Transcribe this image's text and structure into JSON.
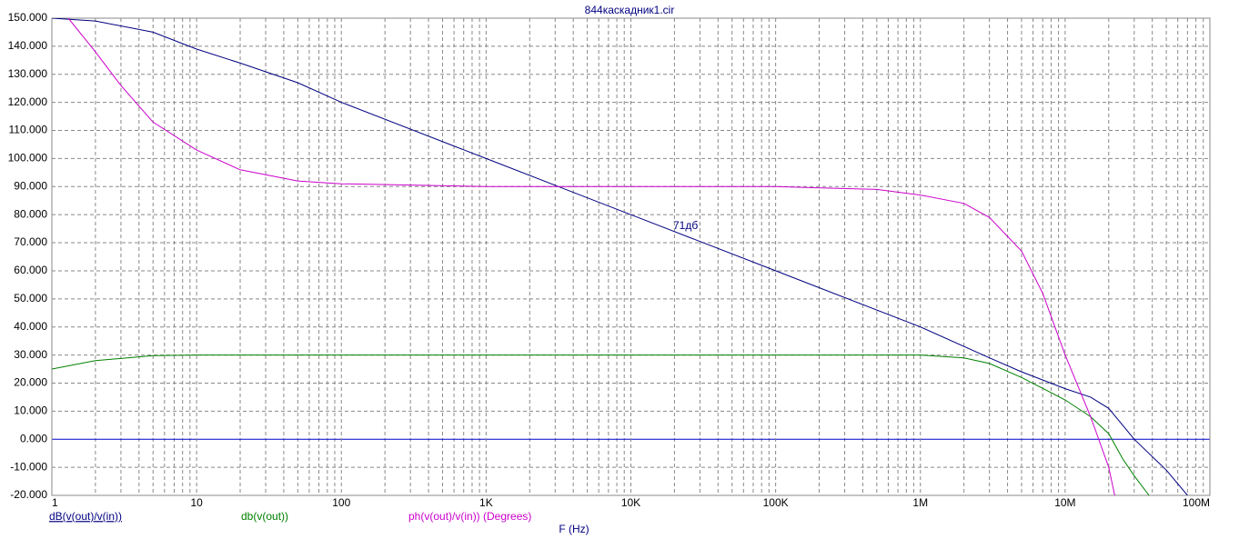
{
  "chart_data": {
    "type": "line",
    "title": "844каскадник1.cir",
    "x_label": "F (Hz)",
    "annotation": "71дб",
    "x_scale": "log",
    "grid": true,
    "xlim": [
      1,
      100000000
    ],
    "xticks": [
      1,
      10,
      100,
      {
        "value": 1000,
        "label": "1K"
      },
      {
        "value": 10000,
        "label": "10K"
      },
      {
        "value": 100000,
        "label": "100K"
      },
      {
        "value": 1000000,
        "label": "1M"
      },
      {
        "value": 10000000,
        "label": "10M"
      },
      {
        "value": 100000000,
        "label": "100M"
      }
    ],
    "ylim": [
      -20,
      150
    ],
    "yticks": [
      {
        "value": 150,
        "label": "150.000"
      },
      {
        "value": 140,
        "label": "140.000"
      },
      {
        "value": 130,
        "label": "130.000"
      },
      {
        "value": 120,
        "label": "120.000"
      },
      {
        "value": 110,
        "label": "110.000"
      },
      {
        "value": 100,
        "label": "100.000"
      },
      {
        "value": 90,
        "label": "90.000"
      },
      {
        "value": 80,
        "label": "80.000"
      },
      {
        "value": 70,
        "label": "70.000"
      },
      {
        "value": 60,
        "label": "60.000"
      },
      {
        "value": 50,
        "label": "50.000"
      },
      {
        "value": 40,
        "label": "40.000"
      },
      {
        "value": 30,
        "label": "30.000"
      },
      {
        "value": 20,
        "label": "20.000"
      },
      {
        "value": 10,
        "label": "10.000"
      },
      {
        "value": 0,
        "label": "0.000"
      },
      {
        "value": -10,
        "label": "-10.000"
      },
      {
        "value": -20,
        "label": "-20.000"
      }
    ],
    "series": [
      {
        "name": "dB(v(out)/v(in))",
        "color": "#000080",
        "x": [
          1,
          2,
          5,
          10,
          20,
          50,
          100,
          1000,
          10000,
          100000,
          1000000,
          3000000,
          5000000,
          10000000,
          15000000,
          20000000,
          30000000,
          50000000,
          70000000
        ],
        "values": [
          150,
          149,
          145,
          139,
          134,
          127,
          120,
          100,
          80,
          60,
          40,
          29,
          24,
          18,
          15,
          11,
          0,
          -11,
          -20
        ]
      },
      {
        "name": "db(v(out))",
        "color": "#008000",
        "x": [
          1,
          2,
          5,
          10,
          1000000,
          2000000,
          3000000,
          5000000,
          10000000,
          15000000,
          20000000,
          25000000,
          30000000,
          38000000
        ],
        "values": [
          25,
          28,
          29.8,
          30,
          30,
          29,
          27,
          22,
          14,
          8,
          2,
          -7,
          -13,
          -20
        ]
      },
      {
        "name": "ph(v(out)/v(in)) (Degrees)",
        "color": "#cc00cc",
        "x": [
          1.3,
          2,
          3,
          5,
          10,
          20,
          50,
          100,
          1000,
          10000,
          100000,
          500000,
          1000000,
          2000000,
          3000000,
          5000000,
          7000000,
          10000000,
          15000000,
          20000000,
          22000000
        ],
        "values": [
          150,
          138,
          126,
          113,
          103,
          96,
          92,
          91,
          90,
          90,
          90,
          89,
          87,
          84,
          79,
          67,
          52,
          30,
          8,
          -10,
          -20
        ]
      }
    ]
  }
}
